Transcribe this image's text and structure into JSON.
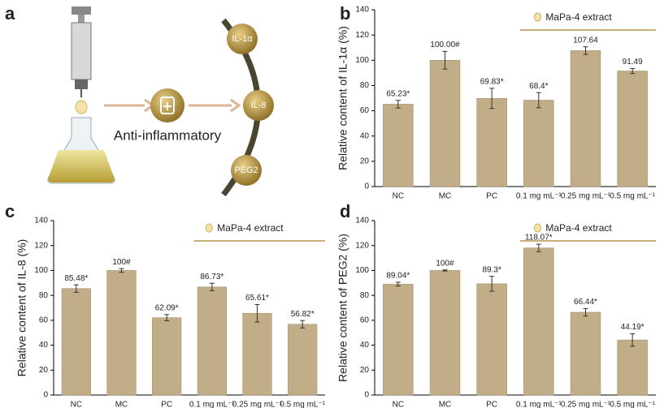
{
  "panel_labels": [
    "a",
    "b",
    "c",
    "d"
  ],
  "diagram": {
    "center_label": "Anti-inflammatory",
    "targets": [
      "IL-1α",
      "IL-8",
      "PEG2"
    ]
  },
  "chart_data": [
    {
      "type": "bar",
      "ylabel": "Relative content of IL-1α  (%)",
      "annotation": "MaPa-4 extract",
      "categories": [
        "NC",
        "MC",
        "PC",
        "0.1 mg mL⁻¹",
        "0.25 mg mL⁻¹",
        "0.5 mg mL⁻¹"
      ],
      "values": [
        65.23,
        100,
        69.83,
        68.4,
        107.64,
        91.49
      ],
      "value_labels": [
        "65.23*",
        "100.00#",
        "69.83*",
        "68.4*",
        "107.64",
        "91.49"
      ],
      "errors": [
        3,
        7,
        8,
        6,
        3,
        2
      ],
      "color": "#c1ad88",
      "ylim": [
        0,
        140
      ],
      "yticks": [
        0,
        20,
        40,
        60,
        80,
        100,
        120,
        140
      ]
    },
    {
      "type": "bar",
      "ylabel": "Relative content of IL-8  (%)",
      "annotation": "MaPa-4 extract",
      "categories": [
        "NC",
        "MC",
        "PC",
        "0.1 mg mL⁻¹",
        "0.25 mg mL⁻¹",
        "0.5 mg mL⁻¹"
      ],
      "values": [
        85.48,
        100,
        62.09,
        86.73,
        65.61,
        56.82
      ],
      "value_labels": [
        "85.48*",
        "100#",
        "62.09*",
        "86.73*",
        "65.61*",
        "56.82*"
      ],
      "errors": [
        3,
        1.5,
        2.5,
        3,
        7,
        3
      ],
      "color": "#c1ad88",
      "ylim": [
        0,
        140
      ],
      "yticks": [
        0,
        20,
        40,
        60,
        80,
        100,
        120,
        140
      ]
    },
    {
      "type": "bar",
      "ylabel": "Relative content of PEG2  (%)",
      "annotation": "MaPa-4 extract",
      "categories": [
        "NC",
        "MC",
        "PC",
        "0.1 mg mL⁻¹",
        "0.25 mg mL⁻¹",
        "0.5 mg mL⁻¹"
      ],
      "values": [
        89.04,
        100,
        89.3,
        118.07,
        66.44,
        44.19
      ],
      "value_labels": [
        "89.04*",
        "100#",
        "89.3*",
        "118.07*",
        "66.44*",
        "44.19*"
      ],
      "errors": [
        1.5,
        0.5,
        6,
        3,
        3,
        5
      ],
      "color": "#c1ad88",
      "ylim": [
        0,
        140
      ],
      "yticks": [
        0,
        20,
        40,
        60,
        80,
        100,
        120,
        140
      ]
    }
  ]
}
